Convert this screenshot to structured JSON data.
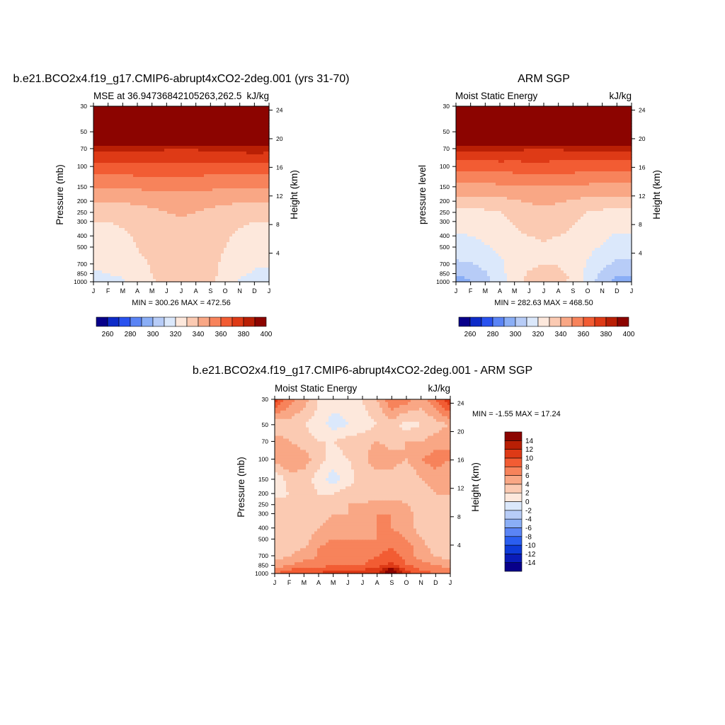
{
  "months": [
    "J",
    "F",
    "M",
    "A",
    "M",
    "J",
    "J",
    "A",
    "S",
    "O",
    "N",
    "D",
    "J"
  ],
  "pressure_ticks": [
    30,
    50,
    70,
    100,
    150,
    200,
    250,
    300,
    400,
    500,
    700,
    850,
    1000
  ],
  "height_ticks_km": [
    4,
    8,
    12,
    16,
    20,
    24
  ],
  "colors": {
    "mse": [
      "#08008a",
      "#0e2bc8",
      "#2952ef",
      "#5a84f5",
      "#8aaef6",
      "#b7ccf7",
      "#dbe8fb",
      "#fde8dc",
      "#fbcab2",
      "#f9a785",
      "#f7835b",
      "#f25c33",
      "#de3a16",
      "#b91f05",
      "#8c0400"
    ],
    "diff": [
      "#08008a",
      "#0a1cb8",
      "#0e3bd8",
      "#2a5ef0",
      "#5a84f5",
      "#8aaef6",
      "#b7ccf7",
      "#dbe8fb",
      "#fde8dc",
      "#fbcab2",
      "#f9a785",
      "#f7835b",
      "#f25c33",
      "#de3a16",
      "#b91f05",
      "#8c0400"
    ]
  },
  "chart_data": [
    {
      "type": "heatmap",
      "title": "b.e21.BCO2x4.f19_g17.CMIP6-abrupt4xCO2-2deg.001 (yrs 31-70)",
      "left_label": "MSE at 36.94736842105263,262.5",
      "right_label": "kJ/kg",
      "ylabel": "Pressure (mb)",
      "ylabel_right": "Height (km)",
      "xlabel": "",
      "stats": "MIN = 300.26 MAX = 472.56",
      "levels": [
        260,
        270,
        280,
        290,
        300,
        310,
        320,
        330,
        340,
        350,
        360,
        370,
        380,
        390,
        400
      ],
      "colorbar_labels": [
        "260",
        "280",
        "300",
        "320",
        "340",
        "360",
        "380",
        "400"
      ],
      "pressure_ticks": [
        30,
        50,
        70,
        100,
        150,
        200,
        250,
        300,
        400,
        500,
        700,
        850,
        1000
      ],
      "height_ticks_km": [
        4,
        8,
        12,
        16,
        20,
        24
      ],
      "x_ticks": [
        "J",
        "F",
        "M",
        "A",
        "M",
        "J",
        "J",
        "A",
        "S",
        "O",
        "N",
        "D",
        "J"
      ],
      "grid_pressure": [
        1000,
        925,
        850,
        700,
        600,
        500,
        400,
        300,
        250,
        200,
        150,
        100,
        70,
        50,
        30
      ],
      "values": [
        [
          316,
          317,
          319,
          323,
          328,
          333,
          336,
          335,
          331,
          325,
          319,
          316,
          316
        ],
        [
          317,
          318,
          320,
          324,
          329,
          335,
          338,
          337,
          332,
          326,
          320,
          317,
          317
        ],
        [
          319,
          320,
          322,
          325,
          330,
          336,
          339,
          338,
          333,
          327,
          322,
          319,
          319
        ],
        [
          321,
          322,
          324,
          327,
          331,
          335,
          337,
          336,
          333,
          328,
          323,
          321,
          321
        ],
        [
          323,
          324,
          326,
          329,
          332,
          335,
          336,
          335,
          333,
          329,
          325,
          323,
          323
        ],
        [
          325,
          326,
          327,
          330,
          333,
          335,
          335,
          335,
          333,
          330,
          327,
          325,
          325
        ],
        [
          327,
          328,
          329,
          331,
          334,
          336,
          336,
          336,
          334,
          331,
          329,
          327,
          327
        ],
        [
          330,
          330,
          331,
          333,
          336,
          338,
          339,
          338,
          336,
          333,
          331,
          330,
          330
        ],
        [
          334,
          334,
          335,
          336,
          338,
          340,
          341,
          340,
          338,
          336,
          335,
          334,
          334
        ],
        [
          341,
          341,
          341,
          342,
          343,
          344,
          344,
          344,
          343,
          342,
          341,
          341,
          341
        ],
        [
          351,
          351,
          351,
          352,
          352,
          353,
          353,
          352,
          352,
          351,
          351,
          351,
          351
        ],
        [
          366,
          366,
          366,
          367,
          367,
          367,
          367,
          367,
          366,
          366,
          366,
          366,
          366
        ],
        [
          384,
          384,
          383,
          383,
          382,
          381,
          381,
          381,
          382,
          383,
          384,
          385,
          384
        ],
        [
          420,
          420,
          420,
          420,
          420,
          420,
          420,
          420,
          420,
          420,
          420,
          420,
          420
        ],
        [
          455,
          455,
          455,
          455,
          455,
          455,
          455,
          455,
          455,
          455,
          455,
          455,
          455
        ]
      ]
    },
    {
      "type": "heatmap",
      "title": "ARM SGP",
      "left_label": "Moist Static Energy",
      "right_label": "kJ/kg",
      "ylabel": "pressure level",
      "ylabel_right": "Height (km)",
      "xlabel": "",
      "stats": "MIN = 282.63 MAX = 468.50",
      "levels": [
        260,
        270,
        280,
        290,
        300,
        310,
        320,
        330,
        340,
        350,
        360,
        370,
        380,
        390,
        400
      ],
      "colorbar_labels": [
        "260",
        "280",
        "300",
        "320",
        "340",
        "360",
        "380",
        "400"
      ],
      "pressure_ticks": [
        30,
        50,
        70,
        100,
        150,
        200,
        250,
        300,
        400,
        500,
        700,
        850,
        1000
      ],
      "height_ticks_km": [
        4,
        8,
        12,
        16,
        20,
        24
      ],
      "x_ticks": [
        "J",
        "F",
        "M",
        "A",
        "M",
        "J",
        "J",
        "A",
        "S",
        "O",
        "N",
        "D",
        "J"
      ],
      "grid_pressure": [
        1000,
        925,
        850,
        700,
        600,
        500,
        400,
        300,
        250,
        200,
        150,
        100,
        70,
        50,
        30
      ],
      "values": [
        [
          296,
          299,
          306,
          315,
          324,
          332,
          336,
          334,
          327,
          315,
          304,
          297,
          296
        ],
        [
          298,
          301,
          307,
          316,
          325,
          333,
          337,
          335,
          328,
          317,
          306,
          299,
          298
        ],
        [
          302,
          304,
          309,
          317,
          325,
          331,
          334,
          333,
          327,
          318,
          308,
          303,
          302
        ],
        [
          308,
          309,
          313,
          318,
          324,
          328,
          330,
          329,
          325,
          319,
          312,
          308,
          308
        ],
        [
          312,
          313,
          316,
          320,
          325,
          328,
          329,
          328,
          325,
          321,
          315,
          312,
          312
        ],
        [
          316,
          317,
          319,
          322,
          326,
          328,
          329,
          328,
          326,
          323,
          319,
          316,
          316
        ],
        [
          319,
          320,
          322,
          325,
          328,
          330,
          331,
          330,
          328,
          325,
          322,
          319,
          319
        ],
        [
          323,
          323,
          325,
          328,
          331,
          334,
          335,
          334,
          331,
          328,
          325,
          323,
          323
        ],
        [
          327,
          327,
          328,
          330,
          333,
          336,
          337,
          336,
          333,
          330,
          328,
          327,
          327
        ],
        [
          336,
          336,
          336,
          337,
          339,
          341,
          342,
          341,
          339,
          337,
          336,
          336,
          336
        ],
        [
          347,
          347,
          347,
          348,
          349,
          350,
          350,
          350,
          349,
          348,
          347,
          347,
          347
        ],
        [
          364,
          364,
          364,
          365,
          365,
          366,
          366,
          365,
          365,
          364,
          364,
          364,
          364
        ],
        [
          384,
          384,
          383,
          383,
          382,
          381,
          381,
          381,
          382,
          383,
          384,
          385,
          384
        ],
        [
          420,
          420,
          420,
          420,
          420,
          420,
          420,
          420,
          420,
          420,
          420,
          420,
          420
        ],
        [
          455,
          455,
          455,
          455,
          455,
          455,
          455,
          455,
          455,
          455,
          455,
          455,
          455
        ]
      ]
    },
    {
      "type": "heatmap",
      "title": "b.e21.BCO2x4.f19_g17.CMIP6-abrupt4xCO2-2deg.001 - ARM SGP",
      "left_label": "Moist Static Energy",
      "right_label": "kJ/kg",
      "ylabel": "Pressure (mb)",
      "ylabel_right": "Height (km)",
      "xlabel": "",
      "stats": "MIN =  -1.55 MAX =  17.24",
      "levels": [
        -14,
        -12,
        -10,
        -8,
        -6,
        -4,
        -2,
        0,
        2,
        4,
        6,
        8,
        10,
        12,
        14
      ],
      "colorbar_labels": [
        "-14",
        "-12",
        "-10",
        "-8",
        "-6",
        "-4",
        "-2",
        "0",
        "2",
        "4",
        "6",
        "8",
        "10",
        "12",
        "14"
      ],
      "pressure_ticks": [
        30,
        50,
        70,
        100,
        150,
        200,
        250,
        300,
        400,
        500,
        700,
        850,
        1000
      ],
      "height_ticks_km": [
        4,
        8,
        12,
        16,
        20,
        24
      ],
      "x_ticks": [
        "J",
        "F",
        "M",
        "A",
        "M",
        "J",
        "J",
        "A",
        "S",
        "O",
        "N",
        "D",
        "J"
      ],
      "grid_pressure": [
        1000,
        925,
        850,
        700,
        600,
        500,
        400,
        300,
        250,
        200,
        150,
        100,
        70,
        50,
        30
      ],
      "values": [
        [
          8,
          9,
          10,
          10,
          11,
          12,
          11,
          12,
          17,
          11,
          9,
          8,
          8
        ],
        [
          7,
          8,
          9,
          9,
          10,
          10,
          10,
          11,
          15,
          10,
          8,
          7,
          7
        ],
        [
          5,
          6,
          7,
          7,
          8,
          8,
          8,
          9,
          11,
          8,
          7,
          6,
          5
        ],
        [
          3,
          4,
          5,
          6,
          7,
          7,
          7,
          8,
          9,
          7,
          5,
          4,
          3
        ],
        [
          3,
          3,
          4,
          6,
          7,
          7,
          7,
          7,
          8,
          7,
          5,
          3,
          3
        ],
        [
          3,
          3,
          3,
          5,
          6,
          6,
          6,
          6,
          7,
          6,
          4,
          3,
          3
        ],
        [
          2,
          2,
          3,
          4,
          5,
          5,
          5,
          6,
          6,
          5,
          3,
          2,
          2
        ],
        [
          2,
          2,
          2,
          3,
          4,
          4,
          5,
          6,
          6,
          5,
          3,
          2,
          2
        ],
        [
          3,
          3,
          2,
          2,
          3,
          4,
          4,
          5,
          5,
          4,
          3,
          3,
          3
        ],
        [
          1,
          2,
          3,
          2,
          2,
          3,
          3,
          3,
          3,
          3,
          3,
          4,
          4
        ],
        [
          0,
          3,
          3,
          1,
          -1,
          1,
          3,
          2,
          3,
          2,
          4,
          5,
          4
        ],
        [
          5,
          6,
          5,
          3,
          1,
          2,
          3,
          6,
          5,
          4,
          6,
          7,
          6
        ],
        [
          5,
          4,
          3,
          2,
          2,
          3,
          3,
          4,
          3,
          4,
          4,
          5,
          6
        ],
        [
          2,
          3,
          2,
          1,
          -1,
          0,
          1,
          2,
          3,
          1,
          2,
          3,
          4
        ],
        [
          11,
          7,
          5,
          2,
          1,
          1,
          2,
          4,
          8,
          7,
          5,
          8,
          12
        ]
      ]
    }
  ]
}
